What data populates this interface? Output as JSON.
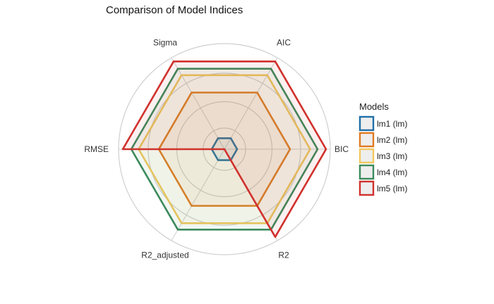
{
  "chart_data": {
    "type": "radar",
    "title": "Comparison of Model Indices",
    "axes": [
      "AIC",
      "BIC",
      "R2",
      "R2_adjusted",
      "RMSE",
      "Sigma"
    ],
    "rlim": [
      0,
      1
    ],
    "grid": true,
    "legend": {
      "title": "Models",
      "position": "right"
    },
    "series": [
      {
        "name": "lm1 (lm)",
        "color": "#1f6fa8",
        "values": [
          0.12,
          0.12,
          0.12,
          0.12,
          0.12,
          0.12
        ]
      },
      {
        "name": "lm2 (lm)",
        "color": "#e07a22",
        "values": [
          0.62,
          0.62,
          0.62,
          0.62,
          0.62,
          0.62
        ]
      },
      {
        "name": "lm3 (lm)",
        "color": "#f2c860",
        "values": [
          0.81,
          0.81,
          0.81,
          0.81,
          0.81,
          0.81
        ]
      },
      {
        "name": "lm4 (lm)",
        "color": "#3c8a5c",
        "values": [
          0.88,
          0.88,
          0.88,
          0.88,
          0.88,
          0.88
        ]
      },
      {
        "name": "lm5 (lm)",
        "color": "#d0312d",
        "values": [
          0.96,
          0.96,
          0.96,
          0.0,
          0.96,
          0.96
        ]
      }
    ]
  }
}
